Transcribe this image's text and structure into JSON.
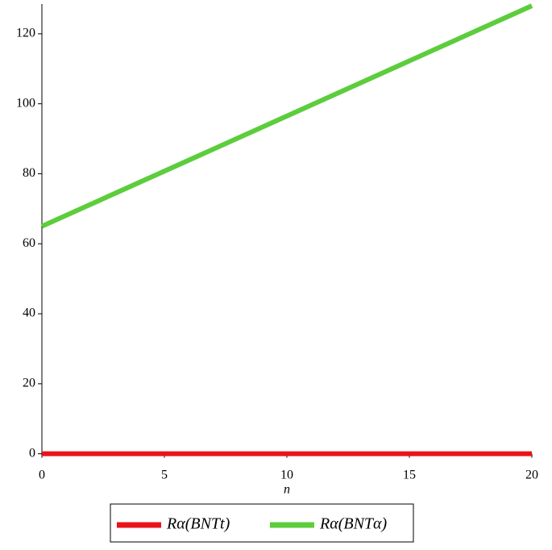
{
  "chart_data": {
    "type": "line",
    "x_label": "n",
    "x": [
      0,
      20
    ],
    "series": [
      {
        "name": "Rα(BNTt)",
        "color": "#e8141a",
        "values": [
          0,
          0
        ]
      },
      {
        "name": "Rα(BNTα)",
        "color": "#5ccd3c",
        "values": [
          65,
          128
        ]
      }
    ],
    "xlim": [
      0,
      20
    ],
    "xticks": [
      0,
      5,
      10,
      15,
      20
    ],
    "ylim": [
      -1,
      128.5
    ],
    "yticks": [
      0,
      20,
      40,
      60,
      80,
      100,
      120
    ],
    "legend": "bottom"
  }
}
